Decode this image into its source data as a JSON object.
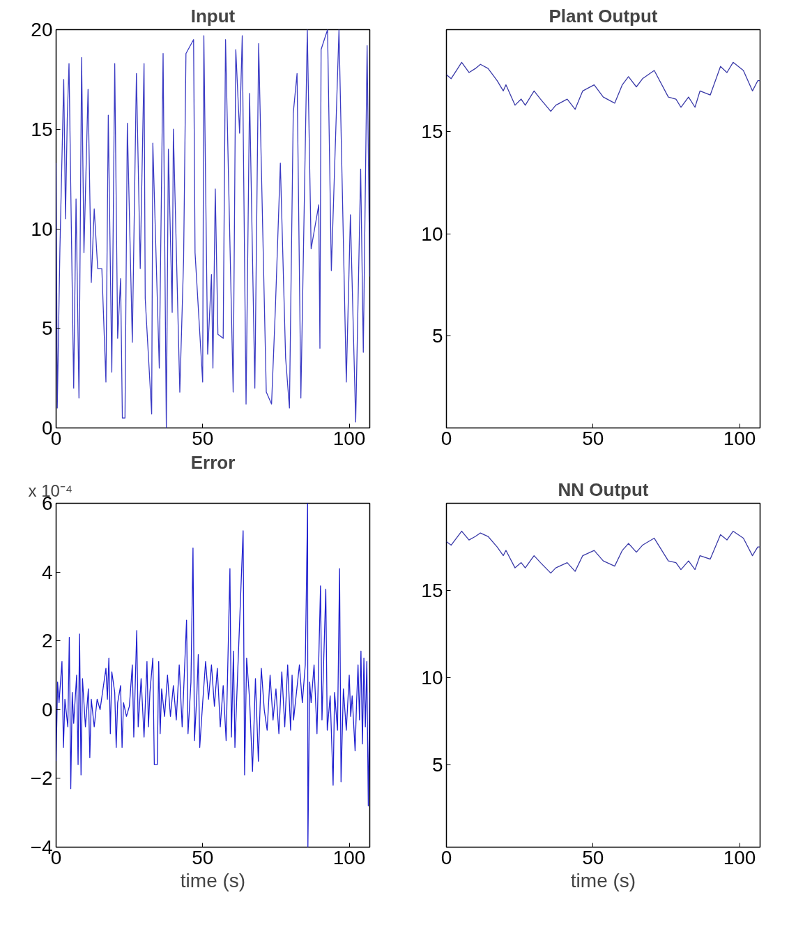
{
  "chart_data": [
    {
      "type": "line",
      "title": "Input",
      "xlim": [
        0,
        107
      ],
      "ylim": [
        0,
        20
      ],
      "xticks": [
        0,
        50,
        100
      ],
      "yticks": [
        0,
        5,
        10,
        15,
        20
      ],
      "series": [
        {
          "color": "#3b3bc4",
          "x": [
            0,
            0.4,
            1.3,
            2.6,
            3.2,
            3.8,
            4.4,
            5.2,
            6,
            6.8,
            7.8,
            8.7,
            9.5,
            10.9,
            12,
            13,
            14.2,
            15.6,
            17,
            17.8,
            19,
            20,
            21,
            22,
            22.6,
            23.5,
            24.3,
            26,
            27.4,
            28.7,
            30,
            30.4,
            32.6,
            33,
            35.2,
            36.5,
            37.6,
            38.3,
            39.6,
            40,
            42.2,
            43.5,
            44.3,
            46.9,
            47.4,
            50,
            50.4,
            51.7,
            53,
            53.5,
            54.3,
            55.2,
            57,
            57.8,
            60.4,
            61.3,
            62.6,
            63.5,
            64.8,
            66,
            67.8,
            69.1,
            71.7,
            73.5,
            74.8,
            76.5,
            78.3,
            79.6,
            80.9,
            82.2,
            83.5,
            85.7,
            87,
            89.6,
            90,
            90.4,
            92.6,
            93.9,
            96.5,
            99,
            100.4,
            102.2,
            103.9,
            104.8,
            106.1,
            107
          ],
          "values": [
            13.3,
            1,
            9,
            17.5,
            10.5,
            15.5,
            18.3,
            10,
            2,
            11.5,
            1.5,
            18.6,
            8.8,
            17,
            7.3,
            11,
            8,
            8,
            2.3,
            15.7,
            2.8,
            18.3,
            4.5,
            7.5,
            0.5,
            0.5,
            15.3,
            4.3,
            17.8,
            8,
            18.3,
            6.5,
            0.7,
            14.3,
            3,
            18.8,
            0,
            14,
            5.8,
            15,
            1.8,
            8.5,
            18.8,
            19.5,
            8.8,
            2.3,
            19.7,
            3.7,
            7.7,
            3,
            12,
            4.7,
            4.5,
            19.5,
            1.8,
            19,
            14.8,
            19.7,
            1.2,
            16.8,
            2,
            19.3,
            1.8,
            1.2,
            6,
            13.3,
            3.5,
            1,
            15.8,
            17.8,
            1.5,
            20,
            9,
            11.2,
            4,
            19,
            20,
            7.9,
            20,
            2.3,
            10.7,
            0.3,
            13,
            3.8,
            19.2,
            7.6
          ]
        }
      ]
    },
    {
      "type": "line",
      "title": "Plant Output",
      "xlim": [
        0,
        107
      ],
      "ylim": [
        0.5,
        20
      ],
      "xticks": [
        0,
        50,
        100
      ],
      "yticks": [
        5,
        10,
        15
      ],
      "series": [
        {
          "color": "#3a3aa8",
          "x": [
            0,
            1.6,
            5.2,
            7.7,
            9.9,
            11.6,
            14.2,
            17.3,
            19.4,
            20.3,
            23.4,
            25.5,
            26.9,
            29.9,
            32.1,
            35.6,
            37.3,
            41.2,
            43.9,
            46.5,
            50.4,
            53.5,
            57.4,
            60,
            62.1,
            64.8,
            66.9,
            70.9,
            75.7,
            78.3,
            80,
            82.6,
            84.8,
            86.5,
            90,
            93.5,
            95.7,
            97.8,
            101.3,
            104.4,
            106.2,
            107
          ],
          "values": [
            17.8,
            17.6,
            18.4,
            17.9,
            18.1,
            18.3,
            18.1,
            17.5,
            17.0,
            17.3,
            16.3,
            16.6,
            16.3,
            17.0,
            16.6,
            16.0,
            16.3,
            16.6,
            16.1,
            17.0,
            17.3,
            16.7,
            16.4,
            17.3,
            17.7,
            17.2,
            17.6,
            18.0,
            16.7,
            16.6,
            16.2,
            16.7,
            16.2,
            17.0,
            16.8,
            18.2,
            17.9,
            18.4,
            18.0,
            17.0,
            17.5,
            17.5
          ]
        }
      ]
    },
    {
      "type": "line",
      "title": "Error",
      "xlabel": "time (s)",
      "annotations": [
        "x 10⁻⁴"
      ],
      "xlim": [
        0,
        107
      ],
      "ylim": [
        -4,
        6
      ],
      "xticks": [
        0,
        50,
        100
      ],
      "yticks": [
        {
          "value": -4,
          "label": "−4"
        },
        {
          "value": -2,
          "label": "−2"
        },
        0,
        2,
        4,
        6
      ],
      "series": [
        {
          "color": "#2020d0",
          "x": [
            0,
            0.5,
            1,
            2,
            2.5,
            3,
            4,
            4.5,
            5,
            5.5,
            6,
            7,
            7.5,
            8,
            8.5,
            9,
            10,
            11,
            11.5,
            12,
            13,
            14,
            15,
            16,
            17,
            17.5,
            18,
            18.5,
            19,
            20,
            20.5,
            21,
            22,
            22.5,
            23,
            24,
            25,
            26,
            26.5,
            27.5,
            28,
            29,
            30,
            31,
            31.5,
            32,
            33,
            33.5,
            34.5,
            35,
            35.5,
            36,
            37,
            38,
            39,
            40,
            41,
            42,
            43,
            44.5,
            45,
            46,
            46.7,
            47.2,
            48,
            48.5,
            49,
            50,
            51,
            52,
            53,
            54,
            55,
            56,
            57,
            58,
            59.3,
            59.8,
            60.5,
            61,
            62,
            63.8,
            64.3,
            65,
            66,
            67,
            68,
            69,
            70,
            71,
            72,
            73,
            74,
            75,
            76,
            77,
            78,
            79,
            80,
            80.5,
            81,
            82,
            83,
            84,
            85,
            85.8,
            85.9,
            86.5,
            87,
            88,
            89,
            90.2,
            90.7,
            92,
            92.5,
            93.5,
            94.5,
            95,
            96,
            96.7,
            97.2,
            98,
            99,
            100,
            100.5,
            101,
            102,
            102.5,
            103,
            103.5,
            104,
            104.5,
            105,
            105.5,
            106,
            106.5,
            107
          ],
          "values": [
            -1.5,
            0.8,
            0.2,
            1.4,
            -1.1,
            0.3,
            -0.5,
            2.1,
            -2.3,
            0.5,
            -0.4,
            1.0,
            -1.6,
            2.2,
            -1.9,
            0.9,
            -0.5,
            0.6,
            -1.4,
            0.3,
            -0.5,
            0.3,
            0,
            0.6,
            1.2,
            0.3,
            1.5,
            -0.7,
            1.1,
            0.5,
            -1.1,
            0.2,
            0.7,
            -1.1,
            0.2,
            -0.2,
            0.1,
            1.3,
            -0.8,
            2.3,
            -0.5,
            0.9,
            -0.8,
            1.4,
            -0.5,
            0.5,
            1.5,
            -1.6,
            -1.6,
            1.4,
            -0.7,
            0.6,
            -0.2,
            1.0,
            -0.2,
            0.7,
            -0.3,
            1.3,
            -0.5,
            2.6,
            -0.7,
            0.8,
            4.7,
            -0.9,
            0.4,
            1.6,
            -1.1,
            0.2,
            1.4,
            0.3,
            1.3,
            0.1,
            1.2,
            -0.5,
            0.7,
            -0.9,
            4.1,
            -0.8,
            1.7,
            -1.1,
            1.2,
            5.2,
            -1.9,
            1.5,
            0.3,
            -1.8,
            0.9,
            -1.5,
            1.2,
            0,
            -0.6,
            1.0,
            -0.3,
            0.6,
            -0.7,
            1.1,
            -0.5,
            1.3,
            -0.6,
            1.0,
            -0.3,
            0.5,
            1.3,
            0.2,
            1.3,
            6,
            -4,
            0.8,
            0.2,
            1.3,
            -0.7,
            3.6,
            -0.3,
            3.5,
            -0.6,
            0.4,
            -2.2,
            0.5,
            -0.6,
            4.1,
            -2.1,
            0.6,
            -0.6,
            1.0,
            -0.2,
            0.4,
            -1.2,
            0.2,
            1.3,
            -0.3,
            1.7,
            -1.0,
            1.5,
            -0.5,
            1.4,
            -2.8,
            0.5
          ]
        }
      ]
    },
    {
      "type": "line",
      "title": "NN Output",
      "xlabel": "time (s)",
      "xlim": [
        0,
        107
      ],
      "ylim": [
        0.3,
        20
      ],
      "xticks": [
        0,
        50,
        100
      ],
      "yticks": [
        5,
        10,
        15
      ],
      "series": [
        {
          "color": "#3a3aa8",
          "x": [
            0,
            1.6,
            5.2,
            7.7,
            9.9,
            11.6,
            14.2,
            17.3,
            19.4,
            20.3,
            23.4,
            25.5,
            26.9,
            29.9,
            32.1,
            35.6,
            37.3,
            41.2,
            43.9,
            46.5,
            50.4,
            53.5,
            57.4,
            60,
            62.1,
            64.8,
            66.9,
            70.9,
            75.7,
            78.3,
            80,
            82.6,
            84.8,
            86.5,
            90,
            93.5,
            95.7,
            97.8,
            101.3,
            104.4,
            106.2,
            107
          ],
          "values": [
            17.8,
            17.6,
            18.4,
            17.9,
            18.1,
            18.3,
            18.1,
            17.5,
            17.0,
            17.3,
            16.3,
            16.6,
            16.3,
            17.0,
            16.6,
            16.0,
            16.3,
            16.6,
            16.1,
            17.0,
            17.3,
            16.7,
            16.4,
            17.3,
            17.7,
            17.2,
            17.6,
            18.0,
            16.7,
            16.6,
            16.2,
            16.7,
            16.2,
            17.0,
            16.8,
            18.2,
            17.9,
            18.4,
            18.0,
            17.0,
            17.5,
            17.5
          ]
        }
      ]
    }
  ]
}
